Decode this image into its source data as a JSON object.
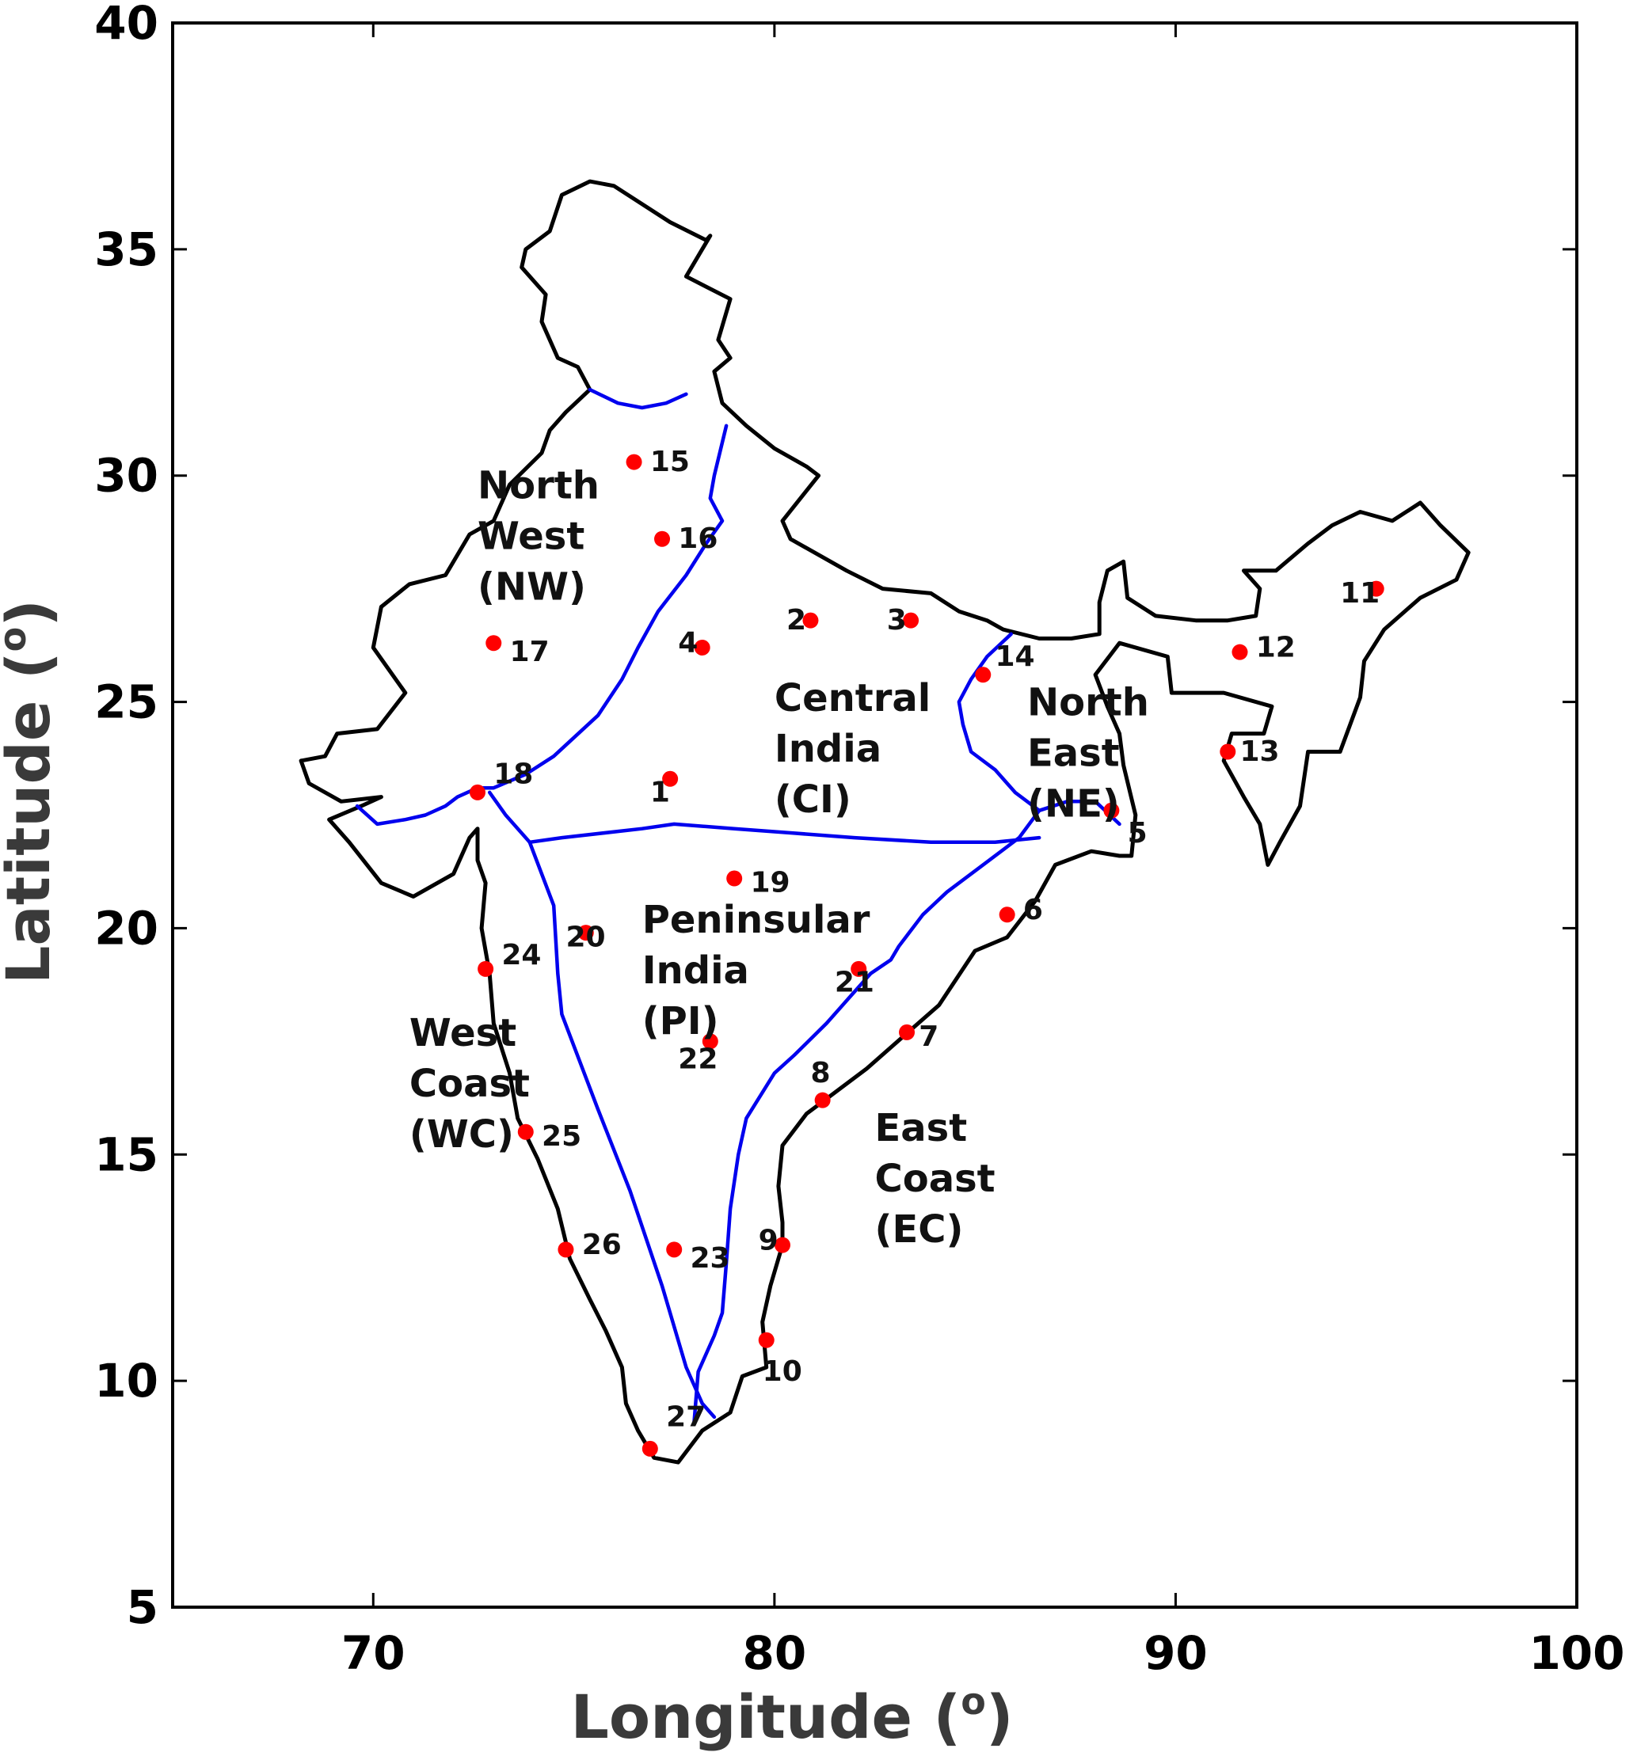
{
  "map": {
    "xlabel": "Longitude (",
    "ylabel": "Latitude (",
    "degree_symbol": "o",
    "axis_close": ")",
    "xlim": [
      65,
      100
    ],
    "ylim": [
      5,
      40
    ],
    "xticks": [
      "70",
      "80",
      "90",
      "100"
    ],
    "yticks": [
      "5",
      "10",
      "15",
      "20",
      "25",
      "30",
      "35",
      "40"
    ],
    "colors": {
      "stations": "#ff0000",
      "region_boundaries": "#0000ee",
      "outline": "#000000"
    }
  },
  "regions": [
    {
      "lines": [
        "North",
        "West",
        "(NW)"
      ],
      "lon": 72.6,
      "lat": 29.5
    },
    {
      "lines": [
        "Central",
        "India",
        "(CI)"
      ],
      "lon": 80.0,
      "lat": 24.8
    },
    {
      "lines": [
        "North",
        "East",
        "(NE)"
      ],
      "lon": 86.3,
      "lat": 24.7
    },
    {
      "lines": [
        "Peninsular",
        "India",
        "(PI)"
      ],
      "lon": 76.7,
      "lat": 19.9
    },
    {
      "lines": [
        "West",
        "Coast",
        "(WC)"
      ],
      "lon": 70.9,
      "lat": 17.4
    },
    {
      "lines": [
        "East",
        "Coast",
        "(EC)"
      ],
      "lon": 82.5,
      "lat": 15.3
    }
  ],
  "stations": [
    {
      "label": "1",
      "lon": 77.4,
      "lat": 23.3,
      "lab_lon": 76.9,
      "lab_lat": 22.8
    },
    {
      "label": "2",
      "lon": 80.9,
      "lat": 26.8,
      "lab_lon": 80.3,
      "lab_lat": 26.6
    },
    {
      "label": "3",
      "lon": 83.4,
      "lat": 26.8,
      "lab_lon": 82.8,
      "lab_lat": 26.6
    },
    {
      "label": "4",
      "lon": 78.2,
      "lat": 26.2,
      "lab_lon": 77.6,
      "lab_lat": 26.1
    },
    {
      "label": "5",
      "lon": 88.4,
      "lat": 22.6,
      "lab_lon": 88.8,
      "lab_lat": 21.9
    },
    {
      "label": "6",
      "lon": 85.8,
      "lat": 20.3,
      "lab_lon": 86.2,
      "lab_lat": 20.2
    },
    {
      "label": "7",
      "lon": 83.3,
      "lat": 17.7,
      "lab_lon": 83.6,
      "lab_lat": 17.4
    },
    {
      "label": "8",
      "lon": 81.2,
      "lat": 16.2,
      "lab_lon": 80.9,
      "lab_lat": 16.6
    },
    {
      "label": "9",
      "lon": 80.2,
      "lat": 13.0,
      "lab_lon": 79.6,
      "lab_lat": 12.9
    },
    {
      "label": "10",
      "lon": 79.8,
      "lat": 10.9,
      "lab_lon": 79.7,
      "lab_lat": 10.0
    },
    {
      "label": "11",
      "lon": 95.0,
      "lat": 27.5,
      "lab_lon": 94.1,
      "lab_lat": 27.2
    },
    {
      "label": "12",
      "lon": 91.6,
      "lat": 26.1,
      "lab_lon": 92.0,
      "lab_lat": 26.0
    },
    {
      "label": "13",
      "lon": 91.3,
      "lat": 23.9,
      "lab_lon": 91.6,
      "lab_lat": 23.7
    },
    {
      "label": "14",
      "lon": 85.2,
      "lat": 25.6,
      "lab_lon": 85.5,
      "lab_lat": 25.8
    },
    {
      "label": "15",
      "lon": 76.5,
      "lat": 30.3,
      "lab_lon": 76.9,
      "lab_lat": 30.1
    },
    {
      "label": "16",
      "lon": 77.2,
      "lat": 28.6,
      "lab_lon": 77.6,
      "lab_lat": 28.4
    },
    {
      "label": "17",
      "lon": 73.0,
      "lat": 26.3,
      "lab_lon": 73.4,
      "lab_lat": 25.9
    },
    {
      "label": "18",
      "lon": 72.6,
      "lat": 23.0,
      "lab_lon": 73.0,
      "lab_lat": 23.2
    },
    {
      "label": "19",
      "lon": 79.0,
      "lat": 21.1,
      "lab_lon": 79.4,
      "lab_lat": 20.8
    },
    {
      "label": "20",
      "lon": 75.3,
      "lat": 19.9,
      "lab_lon": 74.8,
      "lab_lat": 19.6
    },
    {
      "label": "21",
      "lon": 82.1,
      "lat": 19.1,
      "lab_lon": 81.5,
      "lab_lat": 18.6
    },
    {
      "label": "22",
      "lon": 78.4,
      "lat": 17.5,
      "lab_lon": 77.6,
      "lab_lat": 16.9
    },
    {
      "label": "23",
      "lon": 77.5,
      "lat": 12.9,
      "lab_lon": 77.9,
      "lab_lat": 12.5
    },
    {
      "label": "24",
      "lon": 72.8,
      "lat": 19.1,
      "lab_lon": 73.2,
      "lab_lat": 19.2
    },
    {
      "label": "25",
      "lon": 73.8,
      "lat": 15.5,
      "lab_lon": 74.2,
      "lab_lat": 15.2
    },
    {
      "label": "26",
      "lon": 74.8,
      "lat": 12.9,
      "lab_lon": 75.2,
      "lab_lat": 12.8
    },
    {
      "label": "27",
      "lon": 76.9,
      "lat": 8.5,
      "lab_lon": 77.3,
      "lab_lat": 9.0
    }
  ],
  "outline_lonlat": [
    [
      68.2,
      23.7
    ],
    [
      68.8,
      23.8
    ],
    [
      69.1,
      24.3
    ],
    [
      70.1,
      24.4
    ],
    [
      70.8,
      25.2
    ],
    [
      70.0,
      26.2
    ],
    [
      70.2,
      27.1
    ],
    [
      70.9,
      27.6
    ],
    [
      71.8,
      27.8
    ],
    [
      72.4,
      28.7
    ],
    [
      73.0,
      29.0
    ],
    [
      73.4,
      29.8
    ],
    [
      74.2,
      30.5
    ],
    [
      74.4,
      31.0
    ],
    [
      74.8,
      31.4
    ],
    [
      75.4,
      31.9
    ],
    [
      75.1,
      32.4
    ],
    [
      74.6,
      32.6
    ],
    [
      74.2,
      33.4
    ],
    [
      74.3,
      34.0
    ],
    [
      73.7,
      34.6
    ],
    [
      73.8,
      35.0
    ],
    [
      74.4,
      35.4
    ],
    [
      74.7,
      36.2
    ],
    [
      75.4,
      36.5
    ],
    [
      76.0,
      36.4
    ],
    [
      77.4,
      35.6
    ],
    [
      78.3,
      35.2
    ],
    [
      78.4,
      35.3
    ],
    [
      77.8,
      34.4
    ],
    [
      78.9,
      33.9
    ],
    [
      78.6,
      33.0
    ],
    [
      78.9,
      32.6
    ],
    [
      78.5,
      32.3
    ],
    [
      78.7,
      31.6
    ],
    [
      79.3,
      31.1
    ],
    [
      80.0,
      30.6
    ],
    [
      80.8,
      30.2
    ],
    [
      81.1,
      30.0
    ],
    [
      80.2,
      29.0
    ],
    [
      80.4,
      28.6
    ],
    [
      81.8,
      27.9
    ],
    [
      82.7,
      27.5
    ],
    [
      83.9,
      27.4
    ],
    [
      84.6,
      27.0
    ],
    [
      85.3,
      26.8
    ],
    [
      85.7,
      26.6
    ],
    [
      86.6,
      26.4
    ],
    [
      87.4,
      26.4
    ],
    [
      88.1,
      26.5
    ],
    [
      88.1,
      27.2
    ],
    [
      88.3,
      27.9
    ],
    [
      88.7,
      28.1
    ],
    [
      88.8,
      27.3
    ],
    [
      89.5,
      26.9
    ],
    [
      90.5,
      26.8
    ],
    [
      91.3,
      26.8
    ],
    [
      92.0,
      26.9
    ],
    [
      92.1,
      27.5
    ],
    [
      91.7,
      27.9
    ],
    [
      92.5,
      27.9
    ],
    [
      93.3,
      28.5
    ],
    [
      93.9,
      28.9
    ],
    [
      94.6,
      29.2
    ],
    [
      95.4,
      29.0
    ],
    [
      96.1,
      29.4
    ],
    [
      96.6,
      28.9
    ],
    [
      97.3,
      28.3
    ],
    [
      97.0,
      27.7
    ],
    [
      96.1,
      27.3
    ],
    [
      95.2,
      26.6
    ],
    [
      94.7,
      25.9
    ],
    [
      94.6,
      25.1
    ],
    [
      94.1,
      23.9
    ],
    [
      93.3,
      23.9
    ],
    [
      93.1,
      22.7
    ],
    [
      92.6,
      21.9
    ],
    [
      92.3,
      21.4
    ],
    [
      92.1,
      22.3
    ],
    [
      91.7,
      22.9
    ],
    [
      91.2,
      23.7
    ],
    [
      91.4,
      24.3
    ],
    [
      92.2,
      24.3
    ],
    [
      92.4,
      24.9
    ],
    [
      91.2,
      25.2
    ],
    [
      89.9,
      25.2
    ],
    [
      89.8,
      26.0
    ],
    [
      88.6,
      26.3
    ],
    [
      88.0,
      25.6
    ],
    [
      88.3,
      24.9
    ],
    [
      88.6,
      24.3
    ],
    [
      88.7,
      23.6
    ],
    [
      89.0,
      22.5
    ],
    [
      88.9,
      21.6
    ],
    [
      88.6,
      21.6
    ],
    [
      87.9,
      21.7
    ],
    [
      87.0,
      21.4
    ],
    [
      86.5,
      20.6
    ],
    [
      85.8,
      19.8
    ],
    [
      85.0,
      19.5
    ],
    [
      84.1,
      18.3
    ],
    [
      83.2,
      17.6
    ],
    [
      82.3,
      16.9
    ],
    [
      81.4,
      16.3
    ],
    [
      80.8,
      15.9
    ],
    [
      80.2,
      15.2
    ],
    [
      80.1,
      14.3
    ],
    [
      80.2,
      13.5
    ],
    [
      80.2,
      13.0
    ],
    [
      79.9,
      12.1
    ],
    [
      79.7,
      11.3
    ],
    [
      79.8,
      10.3
    ],
    [
      79.2,
      10.1
    ],
    [
      78.9,
      9.3
    ],
    [
      78.2,
      8.9
    ],
    [
      77.6,
      8.2
    ],
    [
      77.0,
      8.3
    ],
    [
      76.6,
      8.9
    ],
    [
      76.3,
      9.5
    ],
    [
      76.2,
      10.3
    ],
    [
      75.8,
      11.1
    ],
    [
      75.4,
      11.8
    ],
    [
      74.9,
      12.7
    ],
    [
      74.6,
      13.8
    ],
    [
      74.1,
      14.9
    ],
    [
      73.6,
      15.8
    ],
    [
      73.4,
      16.8
    ],
    [
      73.0,
      17.9
    ],
    [
      72.9,
      19.0
    ],
    [
      72.7,
      20.0
    ],
    [
      72.8,
      21.0
    ],
    [
      72.6,
      21.5
    ],
    [
      72.6,
      22.2
    ],
    [
      72.4,
      22.0
    ],
    [
      72.0,
      21.2
    ],
    [
      71.0,
      20.7
    ],
    [
      70.2,
      21.0
    ],
    [
      69.4,
      21.9
    ],
    [
      68.9,
      22.4
    ],
    [
      69.7,
      22.7
    ],
    [
      70.2,
      22.9
    ],
    [
      69.2,
      22.8
    ],
    [
      68.4,
      23.2
    ],
    [
      68.2,
      23.7
    ]
  ],
  "boundaries_lonlat": [
    [
      [
        75.4,
        31.9
      ],
      [
        76.1,
        31.6
      ],
      [
        76.7,
        31.5
      ],
      [
        77.3,
        31.6
      ],
      [
        77.8,
        31.8
      ]
    ],
    [
      [
        78.8,
        31.1
      ],
      [
        78.5,
        30.0
      ],
      [
        78.4,
        29.5
      ],
      [
        78.7,
        29.0
      ],
      [
        78.3,
        28.5
      ],
      [
        77.8,
        27.8
      ],
      [
        77.1,
        27.0
      ],
      [
        76.6,
        26.2
      ],
      [
        76.2,
        25.5
      ],
      [
        75.6,
        24.7
      ],
      [
        74.5,
        23.8
      ],
      [
        73.8,
        23.4
      ],
      [
        73.0,
        23.1
      ],
      [
        72.6,
        23.1
      ],
      [
        72.1,
        22.9
      ],
      [
        71.8,
        22.7
      ],
      [
        71.3,
        22.5
      ],
      [
        70.8,
        22.4
      ],
      [
        70.1,
        22.3
      ],
      [
        69.6,
        22.7
      ]
    ],
    [
      [
        72.9,
        23.0
      ],
      [
        73.3,
        22.5
      ],
      [
        73.9,
        21.9
      ]
    ],
    [
      [
        73.9,
        21.9
      ],
      [
        74.7,
        22.0
      ],
      [
        76.7,
        22.2
      ],
      [
        77.5,
        22.3
      ],
      [
        79.0,
        22.2
      ],
      [
        80.5,
        22.1
      ],
      [
        82.0,
        22.0
      ],
      [
        83.9,
        21.9
      ],
      [
        85.5,
        21.9
      ],
      [
        86.6,
        22.0
      ]
    ],
    [
      [
        85.9,
        26.5
      ],
      [
        85.3,
        26.0
      ],
      [
        84.9,
        25.5
      ],
      [
        84.6,
        25.0
      ],
      [
        84.7,
        24.5
      ],
      [
        84.9,
        23.9
      ],
      [
        85.5,
        23.5
      ],
      [
        86.0,
        23.0
      ],
      [
        86.6,
        22.6
      ]
    ],
    [
      [
        86.6,
        22.6
      ],
      [
        87.3,
        22.8
      ],
      [
        88.0,
        22.8
      ],
      [
        88.6,
        22.3
      ]
    ],
    [
      [
        73.9,
        21.9
      ],
      [
        74.5,
        20.5
      ],
      [
        74.6,
        19.0
      ],
      [
        74.7,
        18.1
      ],
      [
        75.6,
        16.0
      ],
      [
        76.4,
        14.2
      ],
      [
        77.2,
        12.1
      ],
      [
        77.8,
        10.3
      ],
      [
        78.2,
        9.5
      ],
      [
        78.5,
        9.2
      ]
    ],
    [
      [
        86.6,
        22.6
      ],
      [
        86.1,
        22.0
      ],
      [
        85.2,
        21.4
      ],
      [
        84.3,
        20.8
      ],
      [
        83.7,
        20.3
      ],
      [
        83.1,
        19.6
      ],
      [
        82.9,
        19.3
      ],
      [
        82.4,
        19.0
      ],
      [
        81.8,
        18.4
      ],
      [
        81.3,
        17.9
      ],
      [
        80.5,
        17.2
      ],
      [
        80.0,
        16.8
      ],
      [
        79.3,
        15.8
      ],
      [
        79.1,
        15.0
      ],
      [
        78.9,
        13.8
      ],
      [
        78.8,
        12.6
      ],
      [
        78.7,
        11.5
      ],
      [
        78.5,
        11.0
      ],
      [
        78.1,
        10.2
      ],
      [
        78.0,
        9.1
      ]
    ]
  ]
}
